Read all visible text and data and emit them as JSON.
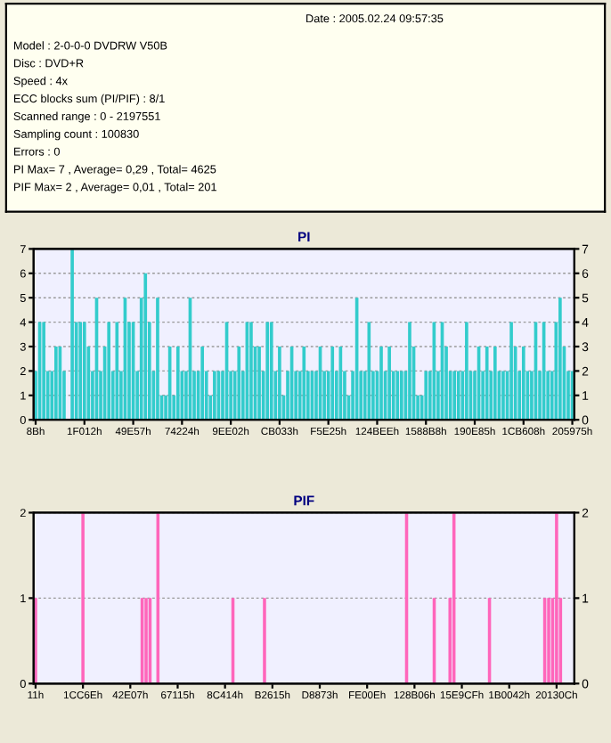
{
  "chart_data": [
    {
      "type": "bar",
      "title": "PI",
      "annotations": [
        "Date : 2005.02.24 09:57:35",
        "Model : 2-0-0-0 DVDRW V50B",
        "Disc : DVD+R",
        "Speed : 4x",
        "ECC blocks sum (PI/PIF) : 8/1",
        "Scanned range : 0 - 2197551",
        "Sampling count : 100830",
        "Errors : 0",
        "PI Max= 7 , Average= 0,29 , Total= 4625",
        "PIF Max= 2 , Average= 0,01 , Total= 201"
      ],
      "categories": [
        "8Bh",
        null,
        null,
        null,
        null,
        null,
        null,
        null,
        null,
        null,
        null,
        null,
        "1F012h",
        null,
        null,
        null,
        null,
        null,
        null,
        null,
        null,
        null,
        null,
        null,
        "49E57h",
        null,
        null,
        null,
        null,
        null,
        null,
        null,
        null,
        null,
        null,
        null,
        "74224h",
        null,
        null,
        null,
        null,
        null,
        null,
        null,
        null,
        null,
        null,
        null,
        "9EE02h",
        null,
        null,
        null,
        null,
        null,
        null,
        null,
        null,
        null,
        null,
        null,
        "CB033h",
        null,
        null,
        null,
        null,
        null,
        null,
        null,
        null,
        null,
        null,
        null,
        "F5E25h",
        null,
        null,
        null,
        null,
        null,
        null,
        null,
        null,
        null,
        null,
        null,
        "124BEEh",
        null,
        null,
        null,
        null,
        null,
        null,
        null,
        null,
        null,
        null,
        null,
        "1588B8h",
        null,
        null,
        null,
        null,
        null,
        null,
        null,
        null,
        null,
        null,
        null,
        "190E85h",
        null,
        null,
        null,
        null,
        null,
        null,
        null,
        null,
        null,
        null,
        null,
        "1CB608h",
        null,
        null,
        null,
        null,
        null,
        null,
        null,
        null,
        null,
        null,
        null,
        "205975h"
      ],
      "values": [
        2,
        4,
        4,
        2,
        2,
        3,
        3,
        2,
        0,
        7,
        4,
        4,
        4,
        3,
        2,
        5,
        2,
        3,
        4,
        2,
        4,
        2,
        5,
        4,
        4,
        2,
        5,
        6,
        4,
        2,
        5,
        1,
        1,
        3,
        1,
        3,
        2,
        2,
        5,
        2,
        2,
        3,
        2,
        1,
        2,
        2,
        2,
        4,
        2,
        2,
        3,
        2,
        4,
        4,
        3,
        3,
        2,
        4,
        4,
        2,
        3,
        1,
        2,
        3,
        2,
        2,
        3,
        2,
        2,
        2,
        3,
        2,
        2,
        3,
        2,
        3,
        2,
        1,
        2,
        5,
        2,
        2,
        4,
        2,
        2,
        3,
        2,
        3,
        2,
        2,
        2,
        2,
        4,
        3,
        1,
        1,
        2,
        2,
        4,
        2,
        4,
        3,
        2,
        2,
        2,
        2,
        4,
        2,
        2,
        3,
        2,
        3,
        2,
        3,
        2,
        2,
        2,
        4,
        3,
        2,
        3,
        2,
        2,
        4,
        2,
        4,
        2,
        2,
        4,
        5,
        3,
        2,
        2
      ],
      "color": "#33cccc",
      "ylim": [
        0,
        7
      ],
      "yticks": [
        0,
        1,
        2,
        3,
        4,
        5,
        6,
        7
      ],
      "y2lim": [
        0,
        7
      ],
      "y2ticks": [
        0,
        1,
        2,
        3,
        4,
        5,
        6,
        7
      ],
      "grid": "y"
    },
    {
      "type": "bar",
      "title": "PIF",
      "categories": [
        "11h",
        null,
        null,
        null,
        null,
        null,
        null,
        null,
        null,
        null,
        null,
        null,
        "1CC6Eh",
        null,
        null,
        null,
        null,
        null,
        null,
        null,
        null,
        null,
        null,
        null,
        "42E07h",
        null,
        null,
        null,
        null,
        null,
        null,
        null,
        null,
        null,
        null,
        null,
        "67115h",
        null,
        null,
        null,
        null,
        null,
        null,
        null,
        null,
        null,
        null,
        null,
        "8C414h",
        null,
        null,
        null,
        null,
        null,
        null,
        null,
        null,
        null,
        null,
        null,
        "B2615h",
        null,
        null,
        null,
        null,
        null,
        null,
        null,
        null,
        null,
        null,
        null,
        "D8873h",
        null,
        null,
        null,
        null,
        null,
        null,
        null,
        null,
        null,
        null,
        null,
        "FE00Eh",
        null,
        null,
        null,
        null,
        null,
        null,
        null,
        null,
        null,
        null,
        null,
        "128B06h",
        null,
        null,
        null,
        null,
        null,
        null,
        null,
        null,
        null,
        null,
        null,
        "15E9CFh",
        null,
        null,
        null,
        null,
        null,
        null,
        null,
        null,
        null,
        null,
        null,
        "1B0042h",
        null,
        null,
        null,
        null,
        null,
        null,
        null,
        null,
        null,
        null,
        null,
        "20130Ch",
        null,
        null,
        null,
        null
      ],
      "values": [
        1,
        0,
        0,
        0,
        0,
        0,
        0,
        0,
        0,
        0,
        0,
        0,
        2,
        0,
        0,
        0,
        0,
        0,
        0,
        0,
        0,
        0,
        0,
        0,
        0,
        0,
        0,
        1,
        1,
        1,
        0,
        2,
        0,
        0,
        0,
        0,
        0,
        0,
        0,
        0,
        0,
        0,
        0,
        0,
        0,
        0,
        0,
        0,
        0,
        0,
        1,
        0,
        0,
        0,
        0,
        0,
        0,
        0,
        1,
        0,
        0,
        0,
        0,
        0,
        0,
        0,
        0,
        0,
        0,
        0,
        0,
        0,
        0,
        0,
        0,
        0,
        0,
        0,
        0,
        0,
        0,
        0,
        0,
        0,
        0,
        0,
        0,
        0,
        0,
        0,
        0,
        0,
        0,
        0,
        2,
        0,
        0,
        0,
        0,
        0,
        0,
        1,
        0,
        0,
        0,
        1,
        2,
        0,
        0,
        0,
        0,
        0,
        0,
        0,
        0,
        1,
        0,
        0,
        0,
        0,
        0,
        0,
        0,
        0,
        0,
        0,
        0,
        0,
        0,
        1,
        1,
        1,
        2,
        1,
        0,
        0,
        0
      ],
      "color": "#ff66bb",
      "ylim": [
        0,
        2
      ],
      "yticks": [
        0,
        1,
        2
      ],
      "y2lim": [
        0,
        2
      ],
      "y2ticks": [
        0,
        1,
        2
      ],
      "grid": "y"
    }
  ]
}
